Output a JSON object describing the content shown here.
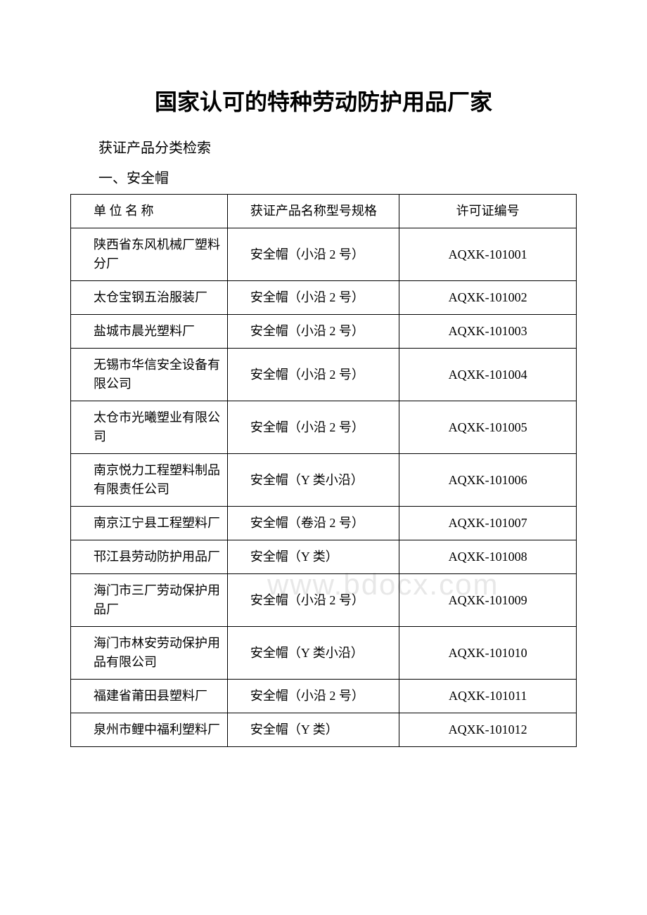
{
  "document": {
    "title": "国家认可的特种劳动防护用品厂家",
    "subtitle": "获证产品分类检索",
    "section_heading": "一、安全帽",
    "watermark": "www.bdocx.com",
    "table": {
      "headers": {
        "col1": "单 位 名 称",
        "col2": "获证产品名称型号规格",
        "col3": "许可证编号"
      },
      "rows": [
        {
          "unit": "陕西省东风机械厂塑料分厂",
          "product": "安全帽（小沿 2 号）",
          "license": "AQXK-101001"
        },
        {
          "unit": "太仓宝钢五治服装厂",
          "product": "安全帽（小沿 2 号）",
          "license": "AQXK-101002"
        },
        {
          "unit": "盐城市晨光塑料厂",
          "product": "安全帽（小沿 2 号）",
          "license": "AQXK-101003"
        },
        {
          "unit": "无锡市华信安全设备有限公司",
          "product": "安全帽（小沿 2 号）",
          "license": "AQXK-101004"
        },
        {
          "unit": "太仓市光曦塑业有限公司",
          "product": "安全帽（小沿 2 号）",
          "license": "AQXK-101005"
        },
        {
          "unit": "南京悦力工程塑料制品有限责任公司",
          "product": "安全帽（Y 类小沿）",
          "license": "AQXK-101006"
        },
        {
          "unit": "南京江宁县工程塑料厂",
          "product": "安全帽（卷沿 2 号）",
          "license": "AQXK-101007"
        },
        {
          "unit": "邗江县劳动防护用品厂",
          "product": "安全帽（Y 类）",
          "license": "AQXK-101008"
        },
        {
          "unit": "海门市三厂劳动保护用品厂",
          "product": "安全帽（小沿 2 号）",
          "license": "AQXK-101009"
        },
        {
          "unit": "海门市林安劳动保护用品有限公司",
          "product": "安全帽（Y 类小沿）",
          "license": "AQXK-101010"
        },
        {
          "unit": "福建省莆田县塑料厂",
          "product": "安全帽（小沿 2 号）",
          "license": "AQXK-101011"
        },
        {
          "unit": "泉州市鲤中福利塑料厂",
          "product": "安全帽（Y 类）",
          "license": "AQXK-101012"
        }
      ]
    }
  }
}
